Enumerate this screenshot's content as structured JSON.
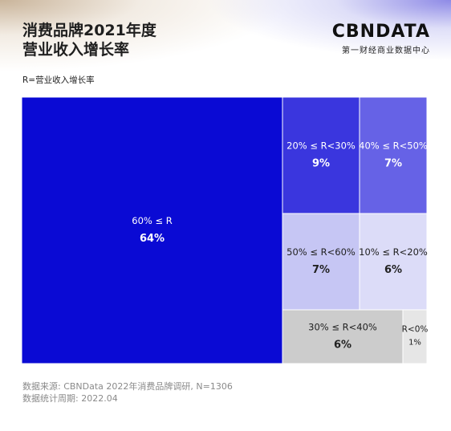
{
  "header": {
    "title_line1": "消费品牌2021年度",
    "title_line2": "营业收入增长率",
    "brand_logo": "CBNDATA",
    "brand_tagline": "第一财经商业数据中心"
  },
  "legend": {
    "label": "R=营业收入增长率"
  },
  "footer": {
    "source": "数据来源: CBNData 2022年消费品牌调研, N=1306",
    "period": "数据统计周期: 2022.04"
  },
  "chart_data": {
    "type": "treemap",
    "cells": [
      {
        "range": "60% ≤ R",
        "value": 64,
        "label": "64%",
        "color": "#0a0ad4",
        "text_color": "#ffffff"
      },
      {
        "range": "20% ≤ R<30%",
        "value": 9,
        "label": "9%",
        "color": "#3a36de",
        "text_color": "#ffffff"
      },
      {
        "range": "40% ≤ R<50%",
        "value": 7,
        "label": "7%",
        "color": "#6662e6",
        "text_color": "#ffffff"
      },
      {
        "range": "50% ≤ R<60%",
        "value": 7,
        "label": "7%",
        "color": "#c6c6f4",
        "text_color": "#222222"
      },
      {
        "range": "10% ≤ R<20%",
        "value": 6,
        "label": "6%",
        "color": "#dcdcf8",
        "text_color": "#222222"
      },
      {
        "range": "30% ≤ R<40%",
        "value": 6,
        "label": "6%",
        "color": "#cccccc",
        "text_color": "#222222"
      },
      {
        "range": "R<0%",
        "value": 1,
        "label": "1%",
        "color": "#e6e6e6",
        "text_color": "#222222"
      }
    ]
  }
}
